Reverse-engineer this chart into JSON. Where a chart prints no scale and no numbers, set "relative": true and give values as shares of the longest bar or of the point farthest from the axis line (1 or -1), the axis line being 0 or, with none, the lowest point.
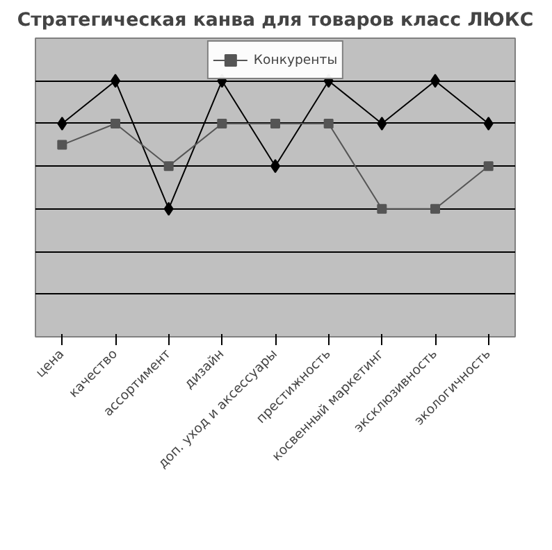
{
  "chart_data": {
    "type": "line",
    "title": "Стратегическая канва для товаров класс ЛЮКС",
    "relative": true,
    "categories": [
      "цена",
      "качество",
      "ассортимент",
      "дизайн",
      "доп. уход и аксессуары",
      "престижность",
      "косвенный маркетинг",
      "эксклюзивность",
      "экологичность"
    ],
    "series": [
      {
        "color": "#000000",
        "marker": "diamond",
        "values": [
          0.833,
          1,
          0.5,
          1,
          0.667,
          1,
          0.833,
          1,
          0.833
        ]
      },
      {
        "name": "Конкуренты",
        "color": "#555555",
        "marker": "square",
        "values": [
          0.75,
          0.833,
          0.667,
          0.833,
          0.833,
          0.833,
          0.5,
          0.5,
          0.667
        ]
      }
    ],
    "grid": "y",
    "legend": "top",
    "line_style": "solid"
  }
}
